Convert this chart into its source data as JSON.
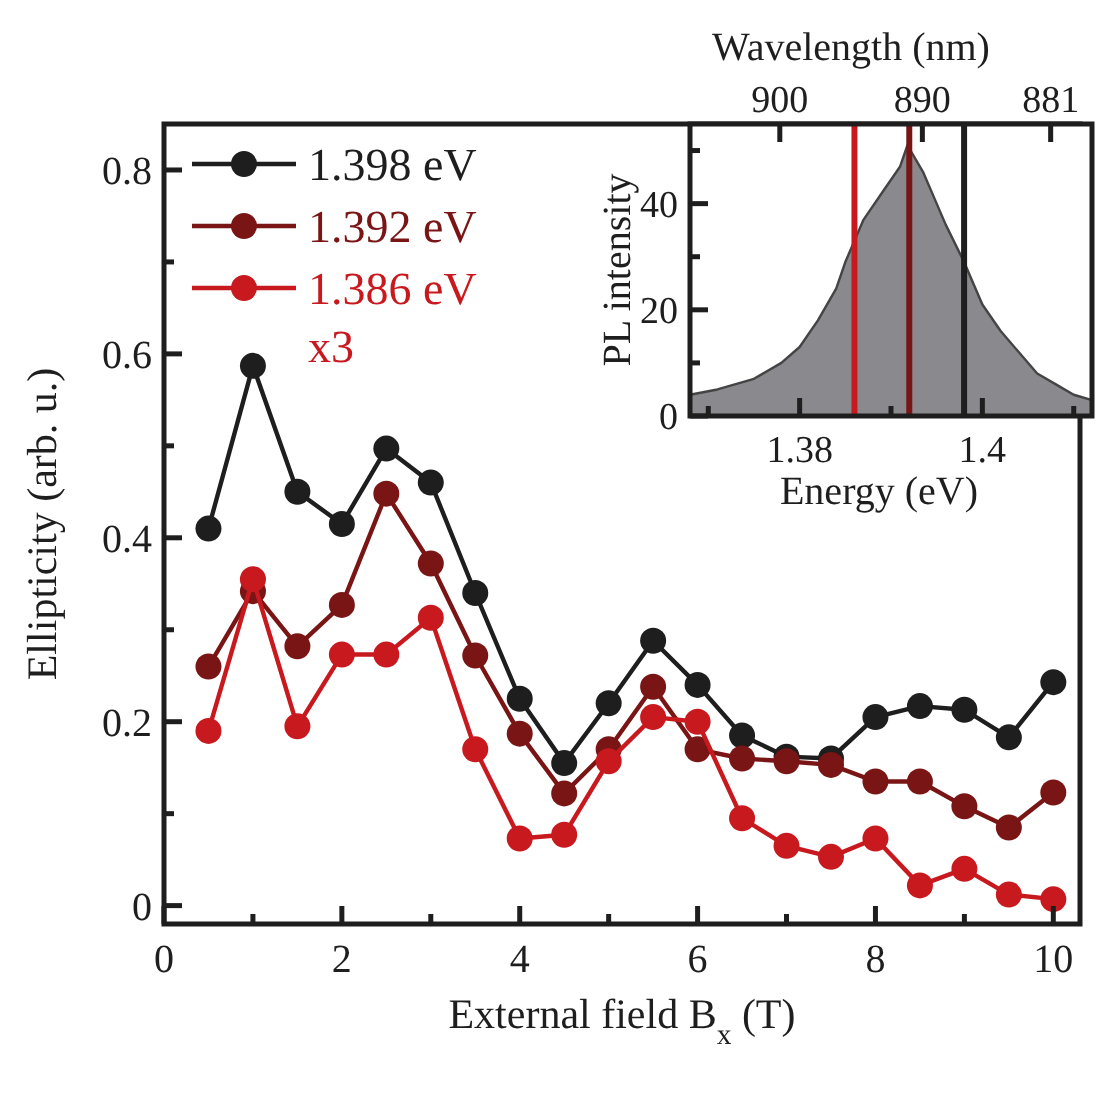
{
  "chart_data": [
    {
      "type": "line",
      "xlabel": "External field B$_{x}$ (T)",
      "ylabel": "Ellipticity (arb. u.)",
      "xlim": [
        0,
        10.3
      ],
      "ylim": [
        -0.02,
        0.85
      ],
      "xticks": [
        0,
        {
          "value": 1,
          "label": null
        },
        2,
        {
          "value": 3,
          "label": null
        },
        4,
        {
          "value": 5,
          "label": null
        },
        6,
        {
          "value": 7,
          "label": null
        },
        8,
        {
          "value": 9,
          "label": null
        },
        10
      ],
      "yticks": [
        {
          "value": 0,
          "label": "0"
        },
        {
          "value": 0.1,
          "label": null
        },
        {
          "value": 0.2,
          "label": "0.2"
        },
        {
          "value": 0.3,
          "label": null
        },
        {
          "value": 0.4,
          "label": "0.4"
        },
        {
          "value": 0.5,
          "label": null
        },
        {
          "value": 0.6,
          "label": "0.6"
        },
        {
          "value": 0.7,
          "label": null
        },
        {
          "value": 0.8,
          "label": "0.8"
        }
      ],
      "x": [
        0.5,
        1,
        1.5,
        2,
        2.5,
        3,
        3.5,
        4,
        4.5,
        5,
        5.5,
        6,
        6.5,
        7,
        7.5,
        8,
        8.5,
        9,
        9.5,
        10
      ],
      "series": [
        {
          "name": "1.398 eV",
          "color": "#1e1e1e",
          "values": [
            0.41,
            0.587,
            0.45,
            0.415,
            0.497,
            0.46,
            0.34,
            0.225,
            0.155,
            0.22,
            0.288,
            0.24,
            0.185,
            0.162,
            0.16,
            0.205,
            0.217,
            0.213,
            0.183,
            0.243
          ]
        },
        {
          "name": "1.392 eV",
          "color": "#7a1515",
          "values": [
            0.26,
            0.342,
            0.282,
            0.327,
            0.448,
            0.372,
            0.272,
            0.187,
            0.122,
            0.17,
            0.238,
            0.17,
            0.16,
            0.157,
            0.153,
            0.135,
            0.135,
            0.108,
            0.085,
            0.123
          ]
        },
        {
          "name": "1.386 eV",
          "color": "#c8191e",
          "values": [
            0.19,
            0.355,
            0.195,
            0.273,
            0.273,
            0.313,
            0.17,
            0.073,
            0.077,
            0.157,
            0.205,
            0.2,
            0.095,
            0.065,
            0.053,
            0.073,
            0.022,
            0.04,
            0.012,
            0.007
          ]
        }
      ],
      "annotations": [
        "x3"
      ],
      "legend": "top left",
      "marker": "circle"
    },
    {
      "type": "area",
      "xlabel": "Energy (eV)",
      "ylabel": "PL intensity",
      "x2label": "Wavelength (nm)",
      "xlim": [
        1.368,
        1.412
      ],
      "ylim": [
        0,
        55
      ],
      "x2lim": [
        906.3,
        878.1
      ],
      "xticks": [
        {
          "value": 1.37,
          "label": null
        },
        1.38,
        {
          "value": 1.39,
          "label": null
        },
        1.4,
        {
          "value": 1.41,
          "label": null
        }
      ],
      "x2ticks": [
        900,
        890,
        881
      ],
      "yticks": [
        0,
        {
          "value": 10,
          "label": null
        },
        20,
        {
          "value": 30,
          "label": null
        },
        40,
        {
          "value": 50,
          "label": null
        }
      ],
      "x": [
        1.368,
        1.371,
        1.375,
        1.378,
        1.38,
        1.382,
        1.384,
        1.385,
        1.387,
        1.389,
        1.391,
        1.3918,
        1.3935,
        1.395,
        1.396,
        1.398,
        1.4,
        1.402,
        1.404,
        1.406,
        1.408,
        1.41,
        1.412
      ],
      "series": [
        {
          "color": "#8a8a8e",
          "values": [
            4,
            5,
            7,
            10,
            13,
            18,
            24,
            29,
            37,
            42,
            47,
            51,
            46,
            40,
            36,
            29,
            21,
            16,
            12,
            8,
            6,
            4,
            3
          ]
        }
      ],
      "ref_lines": [
        {
          "axis": "x",
          "value": 1.386,
          "color": "#c8191e"
        },
        {
          "axis": "x",
          "value": 1.392,
          "color": "#7a1515"
        },
        {
          "axis": "x",
          "value": 1.398,
          "color": "#1e1e1e"
        }
      ]
    }
  ]
}
